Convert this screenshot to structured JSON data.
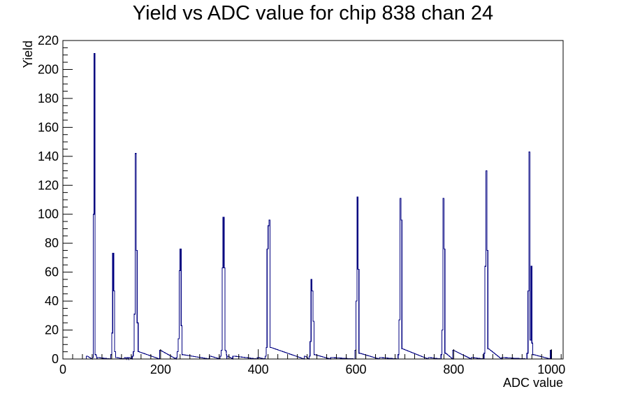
{
  "chart_data": {
    "type": "histogram",
    "title": "Yield vs ADC value for chip 838 chan 24",
    "xlabel": "ADC value",
    "ylabel": "Yield",
    "xlim": [
      0,
      1024
    ],
    "ylim": [
      0,
      220
    ],
    "x_ticks": [
      0,
      200,
      400,
      600,
      800,
      1000
    ],
    "y_ticks": [
      0,
      20,
      40,
      60,
      80,
      100,
      120,
      140,
      160,
      180,
      200,
      220
    ],
    "x_ticks_labels": [
      "0",
      "200",
      "400",
      "600",
      "800",
      "1000"
    ],
    "y_ticks_labels": [
      "0",
      "20",
      "40",
      "60",
      "80",
      "100",
      "120",
      "140",
      "160",
      "180",
      "200",
      "220"
    ],
    "bin_width": 2,
    "color": "#000080",
    "grid": false,
    "legend": "none",
    "bins": [
      {
        "x": 48,
        "y": 2
      },
      {
        "x": 60,
        "y": 1
      },
      {
        "x": 62,
        "y": 100
      },
      {
        "x": 64,
        "y": 211
      },
      {
        "x": 66,
        "y": 3
      },
      {
        "x": 70,
        "y": 1
      },
      {
        "x": 98,
        "y": 3
      },
      {
        "x": 100,
        "y": 18
      },
      {
        "x": 102,
        "y": 73
      },
      {
        "x": 104,
        "y": 47
      },
      {
        "x": 106,
        "y": 5
      },
      {
        "x": 108,
        "y": 1
      },
      {
        "x": 126,
        "y": 1
      },
      {
        "x": 130,
        "y": 1
      },
      {
        "x": 134,
        "y": 1
      },
      {
        "x": 142,
        "y": 2
      },
      {
        "x": 144,
        "y": 5
      },
      {
        "x": 146,
        "y": 31
      },
      {
        "x": 148,
        "y": 142
      },
      {
        "x": 150,
        "y": 75
      },
      {
        "x": 152,
        "y": 25
      },
      {
        "x": 154,
        "y": 5
      },
      {
        "x": 198,
        "y": 6
      },
      {
        "x": 232,
        "y": 1
      },
      {
        "x": 234,
        "y": 5
      },
      {
        "x": 236,
        "y": 14
      },
      {
        "x": 238,
        "y": 61
      },
      {
        "x": 240,
        "y": 76
      },
      {
        "x": 242,
        "y": 23
      },
      {
        "x": 244,
        "y": 3
      },
      {
        "x": 300,
        "y": 2
      },
      {
        "x": 322,
        "y": 2
      },
      {
        "x": 324,
        "y": 6
      },
      {
        "x": 326,
        "y": 63
      },
      {
        "x": 328,
        "y": 98
      },
      {
        "x": 330,
        "y": 63
      },
      {
        "x": 332,
        "y": 6
      },
      {
        "x": 336,
        "y": 2
      },
      {
        "x": 348,
        "y": 2
      },
      {
        "x": 398,
        "y": 1
      },
      {
        "x": 414,
        "y": 2
      },
      {
        "x": 416,
        "y": 8
      },
      {
        "x": 418,
        "y": 76
      },
      {
        "x": 420,
        "y": 92
      },
      {
        "x": 422,
        "y": 96
      },
      {
        "x": 424,
        "y": 8
      },
      {
        "x": 494,
        "y": 2
      },
      {
        "x": 504,
        "y": 2
      },
      {
        "x": 506,
        "y": 12
      },
      {
        "x": 508,
        "y": 55
      },
      {
        "x": 510,
        "y": 47
      },
      {
        "x": 512,
        "y": 26
      },
      {
        "x": 514,
        "y": 3
      },
      {
        "x": 548,
        "y": 1
      },
      {
        "x": 598,
        "y": 6
      },
      {
        "x": 600,
        "y": 40
      },
      {
        "x": 602,
        "y": 112
      },
      {
        "x": 604,
        "y": 62
      },
      {
        "x": 606,
        "y": 4
      },
      {
        "x": 648,
        "y": 1
      },
      {
        "x": 686,
        "y": 3
      },
      {
        "x": 688,
        "y": 27
      },
      {
        "x": 690,
        "y": 111
      },
      {
        "x": 692,
        "y": 96
      },
      {
        "x": 694,
        "y": 7
      },
      {
        "x": 748,
        "y": 1
      },
      {
        "x": 774,
        "y": 3
      },
      {
        "x": 776,
        "y": 20
      },
      {
        "x": 778,
        "y": 111
      },
      {
        "x": 780,
        "y": 76
      },
      {
        "x": 782,
        "y": 4
      },
      {
        "x": 798,
        "y": 6
      },
      {
        "x": 836,
        "y": 1
      },
      {
        "x": 862,
        "y": 4
      },
      {
        "x": 864,
        "y": 64
      },
      {
        "x": 866,
        "y": 130
      },
      {
        "x": 868,
        "y": 75
      },
      {
        "x": 870,
        "y": 7
      },
      {
        "x": 898,
        "y": 1
      },
      {
        "x": 950,
        "y": 4
      },
      {
        "x": 952,
        "y": 47
      },
      {
        "x": 954,
        "y": 143
      },
      {
        "x": 956,
        "y": 13
      },
      {
        "x": 958,
        "y": 64
      },
      {
        "x": 960,
        "y": 11
      },
      {
        "x": 962,
        "y": 3
      },
      {
        "x": 998,
        "y": 6
      }
    ]
  }
}
